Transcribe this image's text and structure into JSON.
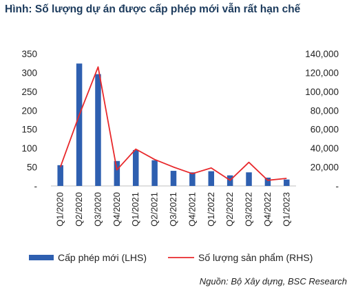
{
  "title": "Hình: Số lượng dự án được cấp phép mới vẫn rất hạn chế",
  "source": "Nguồn: Bộ Xây dựng, BSC Research",
  "colors": {
    "bar": "#2e5fb0",
    "line": "#e8282b",
    "title": "#1b3a5c"
  },
  "chart_data": {
    "type": "bar",
    "categories": [
      "Q1/2020",
      "Q2/2020",
      "Q3/2020",
      "Q4/2020",
      "Q1/2021",
      "Q2/2021",
      "Q3/2021",
      "Q4/2021",
      "Q1/2022",
      "Q2/2022",
      "Q3/2022",
      "Q4/2022",
      "Q1/2023"
    ],
    "series": [
      {
        "name": "Cấp phép mới (LHS)",
        "type": "bar",
        "axis": "left",
        "values": [
          55,
          324,
          296,
          66,
          95,
          68,
          40,
          36,
          39,
          28,
          36,
          22,
          17
        ]
      },
      {
        "name": "Số lượng sản phẩm (RHS)",
        "type": "line",
        "axis": "right",
        "values": [
          20000,
          75000,
          126000,
          17000,
          39000,
          28000,
          20000,
          13000,
          19000,
          6000,
          25000,
          6000,
          8000
        ]
      }
    ],
    "left_axis": {
      "ylim": [
        0,
        350
      ],
      "ticks": [
        "-",
        "50",
        "100",
        "150",
        "200",
        "250",
        "300",
        "350"
      ]
    },
    "right_axis": {
      "ylim": [
        0,
        140000
      ],
      "ticks": [
        "-",
        "20,000",
        "40,000",
        "60,000",
        "80,000",
        "100,000",
        "120,000",
        "140,000"
      ]
    },
    "legend_position": "bottom",
    "grid": false
  }
}
